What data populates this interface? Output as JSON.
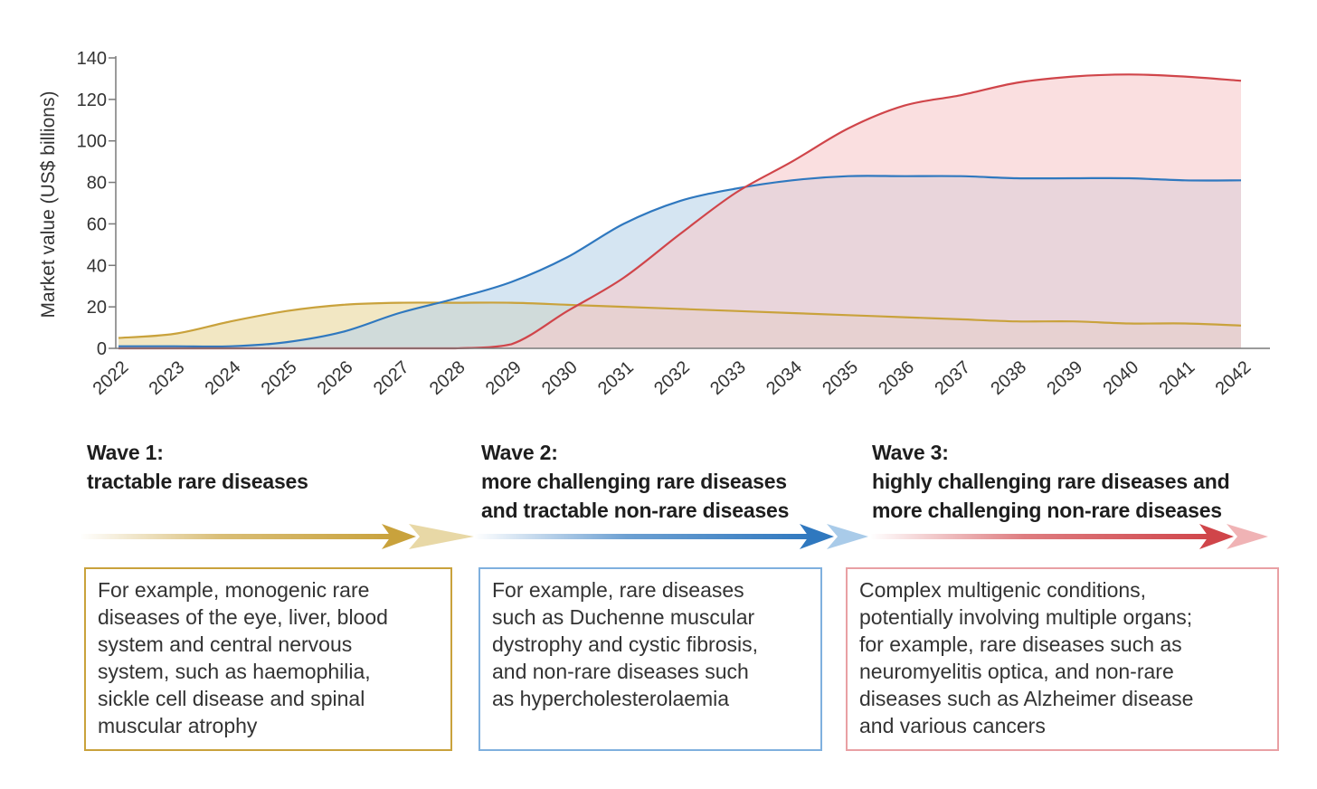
{
  "chart_data": {
    "type": "area",
    "ylabel": "Market value (US$ billions)",
    "xlabel": "",
    "ylim": [
      0,
      140
    ],
    "yticks": [
      0,
      20,
      40,
      60,
      80,
      100,
      120,
      140
    ],
    "x": [
      "2022",
      "2023",
      "2024",
      "2025",
      "2026",
      "2027",
      "2028",
      "2029",
      "2030",
      "2031",
      "2032",
      "2033",
      "2034",
      "2035",
      "2036",
      "2037",
      "2038",
      "2039",
      "2040",
      "2041",
      "2042"
    ],
    "grid": false,
    "legend": "none",
    "series": [
      {
        "values": [
          5,
          7,
          13,
          18,
          21,
          22,
          22,
          22,
          21,
          20,
          19,
          18,
          17,
          16,
          15,
          14,
          13,
          13,
          12,
          12,
          11
        ],
        "color": "#c9a23c",
        "fill": "#f0e3b8"
      },
      {
        "values": [
          1,
          1,
          1,
          3,
          8,
          17,
          24,
          32,
          44,
          60,
          71,
          77,
          81,
          83,
          83,
          83,
          82,
          82,
          82,
          81,
          81
        ],
        "color": "#2f78bf",
        "fill": "#b9d3ea"
      },
      {
        "values": [
          0,
          0,
          0,
          0,
          0,
          0,
          0,
          2,
          18,
          34,
          55,
          75,
          90,
          106,
          117,
          122,
          128,
          131,
          132,
          131,
          129
        ],
        "color": "#d0454a",
        "fill": "#f7c9cc"
      }
    ]
  },
  "waves": [
    {
      "title": "Wave 1:",
      "subtitle_lines": [
        "tractable rare diseases"
      ],
      "description_lines": [
        "For example, monogenic rare",
        "diseases of the eye, liver, blood",
        "system and central nervous",
        "system, such as haemophilia,",
        "sickle cell disease and spinal",
        "muscular atrophy"
      ],
      "color": "#c9a23c",
      "light": "#e8d8a6"
    },
    {
      "title": "Wave 2:",
      "subtitle_lines": [
        "more challenging rare diseases",
        "and tractable non-rare diseases"
      ],
      "description_lines": [
        "For example, rare diseases",
        "such as Duchenne muscular",
        "dystrophy and cystic fibrosis,",
        "and non-rare diseases such",
        "as hypercholesterolaemia"
      ],
      "color": "#2f78bf",
      "light": "#a9cbe9"
    },
    {
      "title": "Wave 3:",
      "subtitle_lines": [
        "highly challenging rare diseases and",
        "more challenging non-rare diseases"
      ],
      "description_lines": [
        "Complex multigenic conditions,",
        "potentially involving multiple organs;",
        "for example, rare diseases such as",
        "neuromyelitis optica, and non-rare",
        "diseases such as Alzheimer disease",
        "and various cancers"
      ],
      "color": "#d0454a",
      "light": "#f0b3b5"
    }
  ]
}
